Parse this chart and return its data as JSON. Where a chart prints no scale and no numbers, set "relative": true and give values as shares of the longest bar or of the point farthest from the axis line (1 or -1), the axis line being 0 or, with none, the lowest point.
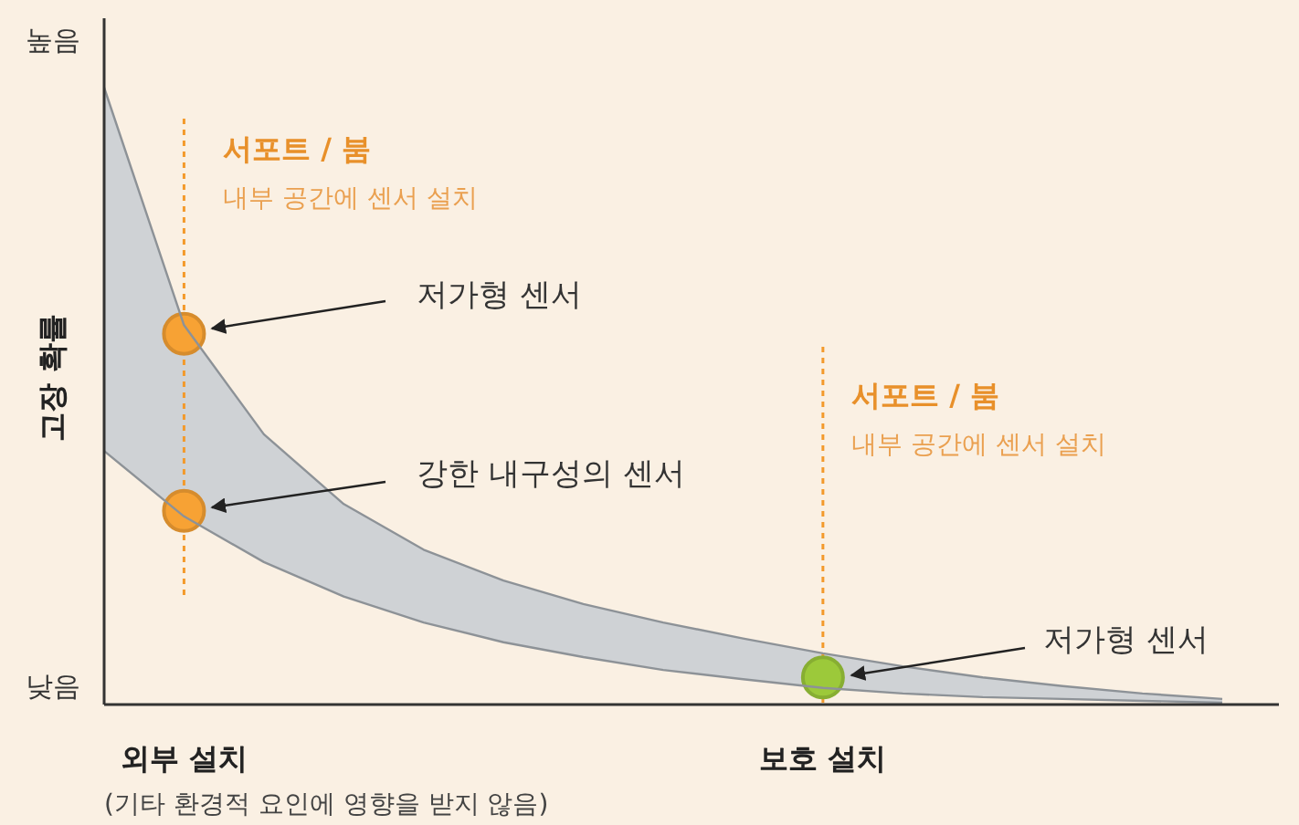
{
  "chart_data": {
    "type": "line",
    "relative": true,
    "ylabel": "고장 확률",
    "categories": [
      null,
      "외부 설치",
      null,
      null,
      null,
      null,
      null,
      null,
      null,
      "보호 설치",
      null,
      null,
      null,
      null,
      null
    ],
    "series": [
      {
        "color": "#8d9297",
        "values": [
          1,
          0.615,
          0.438,
          0.325,
          0.251,
          0.201,
          0.163,
          0.133,
          0.107,
          0.083,
          0.062,
          0.044,
          0.03,
          0.018,
          0.009
        ],
        "upper": [
          1,
          0.615,
          0.438,
          0.325,
          0.251,
          0.201,
          0.163,
          0.133,
          0.107,
          0.083,
          0.062,
          0.044,
          0.03,
          0.018,
          0.009
        ],
        "lower": [
          0.411,
          0.305,
          0.231,
          0.175,
          0.133,
          0.101,
          0.077,
          0.056,
          0.041,
          0.027,
          0.018,
          0.012,
          0.009,
          0.006,
          0.003
        ]
      },
      {
        "color": "#8d9297",
        "values": [
          0.411,
          0.305,
          0.231,
          0.175,
          0.133,
          0.101,
          0.077,
          0.056,
          0.041,
          0.027,
          0.018,
          0.012,
          0.009,
          0.006,
          0.003
        ]
      },
      {
        "type": "scatter",
        "marker": "circle",
        "colors": [
          null,
          "#f7a234",
          null,
          null,
          null,
          null,
          null,
          null,
          null,
          "#9cc93a",
          null,
          null,
          null,
          null,
          null
        ],
        "values": [
          null,
          0.601,
          null,
          null,
          null,
          null,
          null,
          null,
          null,
          0.044,
          null,
          null,
          null,
          null,
          null
        ]
      },
      {
        "type": "scatter",
        "marker": "circle",
        "colors": [
          null,
          "#f7a234",
          null,
          null,
          null,
          null,
          null,
          null,
          null,
          null,
          null,
          null,
          null,
          null,
          null
        ],
        "values": [
          null,
          0.314,
          null,
          null,
          null,
          null,
          null,
          null,
          null,
          null,
          null,
          null,
          null,
          null,
          null
        ]
      }
    ],
    "ref_lines": [
      {
        "axis": "x",
        "value": "외부 설치",
        "color": "#f39a2c",
        "line_style": "dashed"
      },
      {
        "axis": "x",
        "value": "보호 설치",
        "color": "#f39a2c",
        "line_style": "dashed"
      }
    ],
    "annotations": [
      "높음",
      "낮음",
      "(기타 환경적 요인에 영향을 받지 않음)",
      "서포트 / 붐",
      "내부 공간에 센서 설치",
      "서포트 / 붐",
      "내부 공간에 센서 설치",
      "저가형 센서",
      "강한 내구성의 센서",
      "저가형 센서"
    ]
  }
}
